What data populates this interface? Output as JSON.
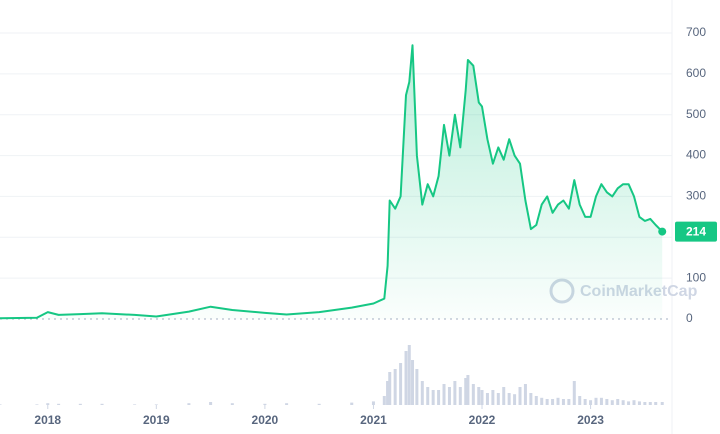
{
  "chart_data": {
    "type": "line",
    "watermark": "CoinMarketCap",
    "x": [
      2017.56,
      2017.9,
      2018.0,
      2018.1,
      2018.3,
      2018.5,
      2018.8,
      2019.0,
      2019.3,
      2019.5,
      2019.7,
      2020.0,
      2020.2,
      2020.5,
      2020.8,
      2021.0,
      2021.1,
      2021.13,
      2021.15,
      2021.2,
      2021.25,
      2021.3,
      2021.33,
      2021.36,
      2021.4,
      2021.45,
      2021.5,
      2021.55,
      2021.6,
      2021.65,
      2021.7,
      2021.75,
      2021.8,
      2021.85,
      2021.87,
      2021.92,
      2021.97,
      2022.0,
      2022.05,
      2022.1,
      2022.15,
      2022.2,
      2022.25,
      2022.3,
      2022.35,
      2022.4,
      2022.45,
      2022.5,
      2022.55,
      2022.6,
      2022.65,
      2022.7,
      2022.75,
      2022.8,
      2022.85,
      2022.9,
      2022.95,
      2023.0,
      2023.05,
      2023.1,
      2023.15,
      2023.2,
      2023.25,
      2023.3,
      2023.35,
      2023.4,
      2023.45,
      2023.5,
      2023.55,
      2023.6,
      2023.66
    ],
    "series": [
      {
        "color": "#16c784",
        "values": [
          2,
          3,
          17,
          10,
          12,
          14,
          10,
          6,
          18,
          30,
          22,
          15,
          11,
          17,
          28,
          38,
          50,
          130,
          290,
          270,
          300,
          548,
          580,
          670,
          400,
          280,
          330,
          300,
          350,
          475,
          400,
          500,
          420,
          560,
          634,
          620,
          530,
          520,
          440,
          380,
          420,
          390,
          440,
          400,
          380,
          290,
          220,
          230,
          280,
          300,
          260,
          280,
          290,
          270,
          340,
          280,
          250,
          250,
          300,
          330,
          310,
          300,
          320,
          330,
          330,
          300,
          250,
          240,
          245,
          230,
          214
        ]
      },
      {
        "color": "#cfd6e4",
        "axis": "y2",
        "values": [
          1,
          1,
          3,
          2,
          2,
          2,
          1,
          1,
          3,
          5,
          3,
          2,
          3,
          2,
          4,
          6,
          15,
          40,
          55,
          60,
          70,
          90,
          100,
          75,
          60,
          40,
          30,
          25,
          25,
          35,
          30,
          40,
          30,
          45,
          50,
          35,
          30,
          25,
          20,
          25,
          20,
          30,
          20,
          18,
          30,
          35,
          20,
          15,
          12,
          10,
          10,
          12,
          10,
          10,
          40,
          15,
          10,
          8,
          12,
          12,
          10,
          8,
          10,
          8,
          6,
          8,
          6,
          5,
          5,
          5,
          5
        ]
      }
    ],
    "xlim": [
      2017.56,
      2023.75
    ],
    "xticks": [
      2018,
      2019,
      2020,
      2021,
      2022,
      2023
    ],
    "ylim": [
      0,
      700
    ],
    "yticks": [
      0,
      100,
      200,
      300,
      400,
      500,
      600,
      700
    ],
    "y2lim": [
      0,
      100
    ],
    "grid": true
  }
}
